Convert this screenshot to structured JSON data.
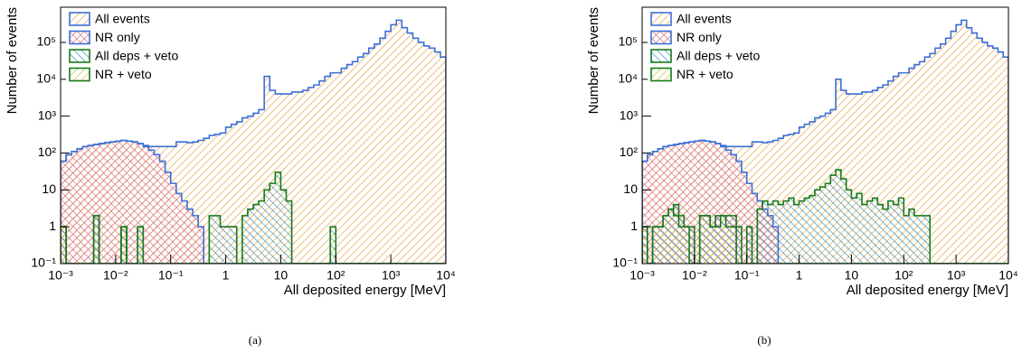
{
  "chart_data": [
    {
      "type": "histogram",
      "caption": "(a)",
      "xlabel": "All deposited energy [MeV]",
      "ylabel": "Number of events",
      "xscale": "log",
      "yscale": "log",
      "legend": "upper left",
      "xlim": [
        0.001,
        10000
      ],
      "ylim": [
        0.1,
        900000
      ],
      "xticks": [
        {
          "value": 0.001,
          "label": "10⁻³"
        },
        {
          "value": 0.01,
          "label": "10⁻²"
        },
        {
          "value": 0.1,
          "label": "10⁻¹"
        },
        1,
        10,
        {
          "value": 100,
          "label": "10²"
        },
        {
          "value": 1000,
          "label": "10³"
        },
        {
          "value": 10000,
          "label": "10⁴"
        }
      ],
      "yticks": [
        {
          "value": 0.1,
          "label": "10⁻¹"
        },
        1,
        10,
        {
          "value": 100,
          "label": "10²"
        },
        {
          "value": 1000,
          "label": "10³"
        },
        {
          "value": 10000,
          "label": "10⁴"
        },
        {
          "value": 100000,
          "label": "10⁵"
        }
      ],
      "bins": [
        0.001,
        0.001259,
        0.001585,
        0.001995,
        0.002512,
        0.003162,
        0.003981,
        0.005012,
        0.00631,
        0.007943,
        0.01,
        0.01259,
        0.01585,
        0.01995,
        0.02512,
        0.03162,
        0.03981,
        0.05012,
        0.0631,
        0.07943,
        0.1,
        0.1259,
        0.1585,
        0.1995,
        0.2512,
        0.3162,
        0.3981,
        0.5012,
        0.631,
        0.7943,
        1,
        1.259,
        1.585,
        1.995,
        2.512,
        3.162,
        3.981,
        5.012,
        6.31,
        7.943,
        10,
        12.59,
        15.85,
        19.95,
        25.12,
        31.62,
        39.81,
        50.12,
        63.1,
        79.43,
        100,
        125.9,
        158.5,
        199.5,
        251.2,
        316.2,
        398.1,
        501.2,
        631,
        794.3,
        1000,
        1259,
        1585,
        1995,
        2512,
        3162,
        3981,
        5012,
        6310,
        7943,
        10000
      ],
      "series": [
        {
          "name": "All events",
          "color": "#e8a13c",
          "edgecolor": "#3b6fd8",
          "hatch": "/",
          "values": [
            60,
            90,
            110,
            130,
            150,
            160,
            170,
            180,
            190,
            200,
            210,
            220,
            210,
            200,
            180,
            160,
            150,
            150,
            150,
            150,
            150,
            200,
            200,
            190,
            200,
            220,
            250,
            300,
            320,
            350,
            500,
            600,
            700,
            900,
            1000,
            1200,
            1500,
            12000,
            5000,
            4000,
            4000,
            4000,
            4500,
            4500,
            5000,
            6000,
            7000,
            9000,
            12000,
            15000,
            15000,
            20000,
            25000,
            30000,
            40000,
            50000,
            70000,
            90000,
            130000,
            200000,
            300000,
            400000,
            250000,
            180000,
            130000,
            100000,
            80000,
            70000,
            55000,
            40000
          ]
        },
        {
          "name": "NR only",
          "color": "#d9727a",
          "edgecolor": "#3b6fd8",
          "hatch": "x",
          "values": [
            60,
            90,
            110,
            130,
            150,
            160,
            170,
            180,
            190,
            200,
            210,
            220,
            210,
            200,
            180,
            150,
            120,
            90,
            60,
            30,
            15,
            8,
            5,
            3,
            2,
            1,
            0,
            0,
            0,
            0,
            0,
            0,
            0,
            0,
            0,
            0,
            0,
            0,
            0,
            0,
            0,
            0,
            0,
            0,
            0,
            0,
            0,
            0,
            0,
            0,
            0,
            0,
            0,
            0,
            0,
            0,
            0,
            0,
            0,
            0,
            0,
            0,
            0,
            0,
            0,
            0,
            0,
            0,
            0,
            0
          ]
        },
        {
          "name": "All deps + veto",
          "color": "#2f8fc0",
          "edgecolor": "#167a1a",
          "hatch": "\\",
          "values": [
            1,
            0,
            0,
            0,
            0,
            0,
            2,
            0,
            0,
            0,
            0,
            1,
            0,
            0,
            1,
            0,
            0,
            0,
            0,
            0,
            0,
            0,
            0,
            0,
            0,
            0,
            0,
            2,
            2,
            1,
            1,
            1,
            0,
            2,
            3,
            4,
            5,
            10,
            15,
            30,
            10,
            5,
            0,
            0,
            0,
            0,
            0,
            0,
            0,
            1,
            0,
            0,
            0,
            0,
            0,
            0,
            0,
            0,
            0,
            0,
            0,
            0,
            0,
            0,
            0,
            0,
            0,
            0,
            0,
            0
          ]
        },
        {
          "name": "NR + veto",
          "color": "#c9c23c",
          "edgecolor": "#167a1a",
          "hatch": "/",
          "values": [
            1,
            0,
            0,
            0,
            0,
            0,
            2,
            0,
            0,
            0,
            0,
            1,
            0,
            0,
            1,
            0,
            0,
            0,
            0,
            0,
            0,
            0,
            0,
            0,
            0,
            0,
            0,
            0,
            0,
            0,
            0,
            0,
            0,
            0,
            0,
            0,
            0,
            0,
            0,
            0,
            0,
            0,
            0,
            0,
            0,
            0,
            0,
            0,
            0,
            0,
            0,
            0,
            0,
            0,
            0,
            0,
            0,
            0,
            0,
            0,
            0,
            0,
            0,
            0,
            0,
            0,
            0,
            0,
            0,
            0
          ]
        }
      ]
    },
    {
      "type": "histogram",
      "caption": "(b)",
      "xlabel": "All deposited energy [MeV]",
      "ylabel": "Number of events",
      "xscale": "log",
      "yscale": "log",
      "legend": "upper left",
      "xlim": [
        0.001,
        10000
      ],
      "ylim": [
        0.1,
        900000
      ],
      "xticks": [
        {
          "value": 0.001,
          "label": "10⁻³"
        },
        {
          "value": 0.01,
          "label": "10⁻²"
        },
        {
          "value": 0.1,
          "label": "10⁻¹"
        },
        1,
        10,
        {
          "value": 100,
          "label": "10²"
        },
        {
          "value": 1000,
          "label": "10³"
        },
        {
          "value": 10000,
          "label": "10⁴"
        }
      ],
      "yticks": [
        {
          "value": 0.1,
          "label": "10⁻¹"
        },
        1,
        10,
        {
          "value": 100,
          "label": "10²"
        },
        {
          "value": 1000,
          "label": "10³"
        },
        {
          "value": 10000,
          "label": "10⁴"
        },
        {
          "value": 100000,
          "label": "10⁵"
        }
      ],
      "bins": [
        0.001,
        0.001259,
        0.001585,
        0.001995,
        0.002512,
        0.003162,
        0.003981,
        0.005012,
        0.00631,
        0.007943,
        0.01,
        0.01259,
        0.01585,
        0.01995,
        0.02512,
        0.03162,
        0.03981,
        0.05012,
        0.0631,
        0.07943,
        0.1,
        0.1259,
        0.1585,
        0.1995,
        0.2512,
        0.3162,
        0.3981,
        0.5012,
        0.631,
        0.7943,
        1,
        1.259,
        1.585,
        1.995,
        2.512,
        3.162,
        3.981,
        5.012,
        6.31,
        7.943,
        10,
        12.59,
        15.85,
        19.95,
        25.12,
        31.62,
        39.81,
        50.12,
        63.1,
        79.43,
        100,
        125.9,
        158.5,
        199.5,
        251.2,
        316.2,
        398.1,
        501.2,
        631,
        794.3,
        1000,
        1259,
        1585,
        1995,
        2512,
        3162,
        3981,
        5012,
        6310,
        7943,
        10000
      ],
      "series": [
        {
          "name": "All events",
          "color": "#e8a13c",
          "edgecolor": "#3b6fd8",
          "hatch": "/",
          "values": [
            60,
            90,
            110,
            130,
            150,
            160,
            170,
            180,
            190,
            200,
            210,
            220,
            210,
            200,
            180,
            160,
            150,
            150,
            150,
            150,
            150,
            200,
            200,
            190,
            200,
            220,
            250,
            300,
            320,
            350,
            500,
            600,
            700,
            900,
            1000,
            1200,
            1500,
            10000,
            5000,
            4000,
            4000,
            4000,
            4500,
            4500,
            5000,
            6000,
            7000,
            9000,
            12000,
            15000,
            15000,
            20000,
            25000,
            30000,
            40000,
            50000,
            70000,
            90000,
            130000,
            200000,
            300000,
            400000,
            250000,
            180000,
            130000,
            100000,
            80000,
            70000,
            55000,
            40000
          ]
        },
        {
          "name": "NR only",
          "color": "#d9727a",
          "edgecolor": "#3b6fd8",
          "hatch": "x",
          "values": [
            60,
            90,
            110,
            130,
            150,
            160,
            170,
            180,
            190,
            200,
            210,
            220,
            210,
            200,
            180,
            150,
            120,
            90,
            60,
            30,
            15,
            8,
            5,
            3,
            2,
            1,
            0,
            0,
            0,
            0,
            0,
            0,
            0,
            0,
            0,
            0,
            0,
            0,
            0,
            0,
            0,
            0,
            0,
            0,
            0,
            0,
            0,
            0,
            0,
            0,
            0,
            0,
            0,
            0,
            0,
            0,
            0,
            0,
            0,
            0,
            0,
            0,
            0,
            0,
            0,
            0,
            0,
            0,
            0,
            0
          ]
        },
        {
          "name": "All deps + veto",
          "color": "#2f8fc0",
          "edgecolor": "#167a1a",
          "hatch": "\\",
          "values": [
            1,
            0,
            1,
            1,
            2,
            3,
            4,
            2,
            1,
            1,
            0,
            2,
            2,
            1,
            2,
            2,
            2,
            2,
            1,
            0,
            1,
            0,
            3,
            5,
            4,
            5,
            4,
            5,
            6,
            4,
            5,
            6,
            7,
            10,
            12,
            15,
            25,
            35,
            20,
            10,
            6,
            8,
            4,
            5,
            6,
            4,
            3,
            5,
            4,
            6,
            2,
            3,
            2,
            2,
            2,
            0,
            0,
            0,
            0,
            0,
            0,
            0,
            0,
            0,
            0,
            0,
            0,
            0,
            0,
            0
          ]
        },
        {
          "name": "NR + veto",
          "color": "#c9c23c",
          "edgecolor": "#167a1a",
          "hatch": "/",
          "values": [
            1,
            0,
            1,
            1,
            2,
            3,
            2,
            1,
            1,
            0,
            0,
            2,
            2,
            1,
            1,
            2,
            1,
            1,
            0,
            0,
            0,
            0,
            0,
            0,
            0,
            0,
            0,
            0,
            0,
            0,
            0,
            0,
            0,
            0,
            0,
            0,
            0,
            0,
            0,
            0,
            0,
            0,
            0,
            0,
            0,
            0,
            0,
            0,
            0,
            0,
            0,
            0,
            0,
            0,
            0,
            0,
            0,
            0,
            0,
            0,
            0,
            0,
            0,
            0,
            0,
            0,
            0,
            0,
            0,
            0
          ]
        }
      ]
    }
  ]
}
